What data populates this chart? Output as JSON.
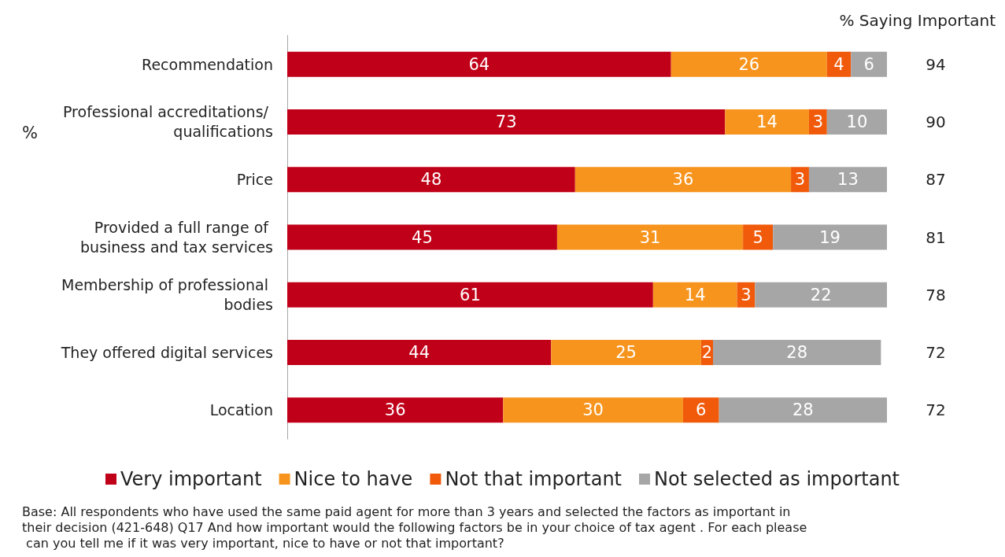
{
  "chart_data": {
    "type": "bar",
    "orientation": "horizontal",
    "stacked": true,
    "data_labels": true,
    "legend": "bottom",
    "ylabel": "%",
    "categories": [
      "Recommendation",
      "Professional accreditations/ qualifications",
      "Price",
      "Provided a full range of business and tax services",
      "Membership of professional bodies",
      "They offered digital services",
      "Location"
    ],
    "series": [
      {
        "name": "Very important",
        "color": "#c00018",
        "values": [
          64,
          73,
          48,
          45,
          61,
          44,
          36
        ]
      },
      {
        "name": "Nice to have",
        "color": "#f7941d",
        "values": [
          26,
          14,
          36,
          31,
          14,
          25,
          30
        ]
      },
      {
        "name": "Not that important",
        "color": "#f05a0a",
        "values": [
          4,
          3,
          3,
          5,
          3,
          2,
          6
        ]
      },
      {
        "name": "Not selected as important",
        "color": "#a6a6a6",
        "values": [
          6,
          10,
          13,
          19,
          22,
          28,
          28
        ]
      }
    ],
    "annotations": [
      "% Saying Important",
      "94",
      "90",
      "87",
      "81",
      "78",
      "72",
      "72",
      "Base: All respondents who have used the same paid agent for more than 3 years and selected the factors as important in their decision (421-648) Q17 And how important would the following factors be in your choice of tax agent . For each please can you tell me if it was very important, nice to have or not that important?"
    ]
  }
}
